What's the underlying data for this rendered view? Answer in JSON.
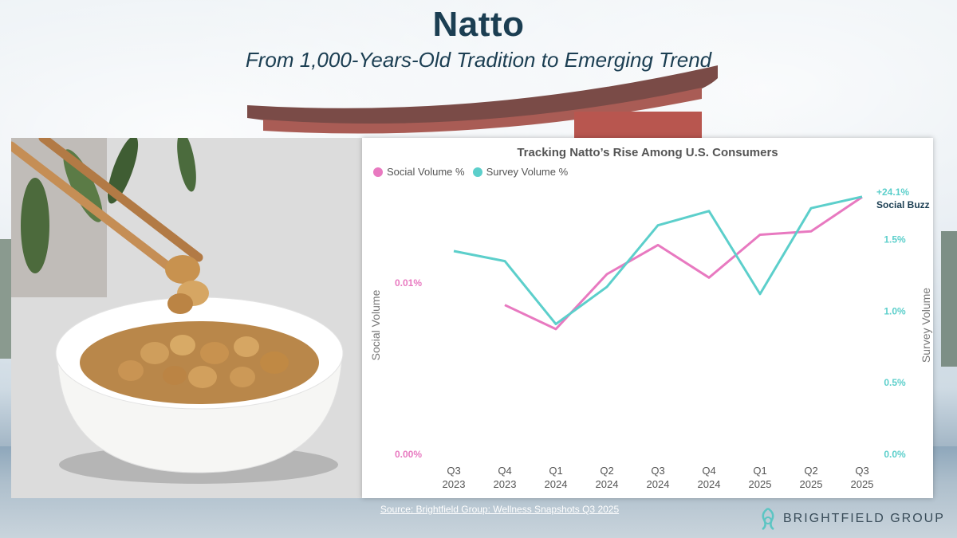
{
  "header": {
    "title": "Natto",
    "subtitle": "From 1,000-Years-Old Tradition to Emerging Trend"
  },
  "footer": {
    "source": "Source: Brightfield Group: Wellness Snapshots Q3 2025",
    "brand": "BRIGHTFIELD GROUP"
  },
  "colors": {
    "title": "#1b3e52",
    "social": "#e879c0",
    "survey": "#5ccfcb",
    "brand_icon": "#5cc5c3"
  },
  "chart_data": {
    "type": "line",
    "title": "Tracking Natto’s Rise Among U.S. Consumers",
    "categories": [
      "Q3\n2023",
      "Q4\n2023",
      "Q1\n2024",
      "Q2\n2024",
      "Q3\n2024",
      "Q4\n2024",
      "Q1\n2025",
      "Q2\n2025",
      "Q3\n2025"
    ],
    "category_lines": [
      [
        "Q3",
        "2023"
      ],
      [
        "Q4",
        "2023"
      ],
      [
        "Q1",
        "2024"
      ],
      [
        "Q2",
        "2024"
      ],
      [
        "Q3",
        "2024"
      ],
      [
        "Q4",
        "2024"
      ],
      [
        "Q1",
        "2025"
      ],
      [
        "Q2",
        "2025"
      ],
      [
        "Q3",
        "2025"
      ]
    ],
    "y_left": {
      "label": "Social Volume",
      "ticks": [
        {
          "value": 0,
          "label": "0.00%"
        },
        {
          "value": 0.01,
          "label": "0.01%"
        }
      ],
      "range": [
        0,
        0.0151
      ]
    },
    "y_right": {
      "label": "Survey Volume",
      "ticks": [
        {
          "value": 0,
          "label": "0.0%"
        },
        {
          "value": 0.5,
          "label": "0.5%"
        },
        {
          "value": 1.0,
          "label": "1.0%"
        },
        {
          "value": 1.5,
          "label": "1.5%"
        }
      ],
      "range": [
        0,
        1.81
      ]
    },
    "series": [
      {
        "name": "Social Volume %",
        "axis": "left",
        "values": [
          null,
          0.0087,
          0.0073,
          0.0105,
          0.0122,
          0.0103,
          0.0128,
          0.013,
          0.015
        ]
      },
      {
        "name": "Survey Volume %",
        "axis": "right",
        "values": [
          1.42,
          1.35,
          0.91,
          1.17,
          1.6,
          1.7,
          1.12,
          1.72,
          1.8
        ]
      }
    ],
    "annotation": {
      "value": "+24.1%",
      "text": "Social Buzz"
    },
    "grid": false,
    "legend": "top-left"
  }
}
